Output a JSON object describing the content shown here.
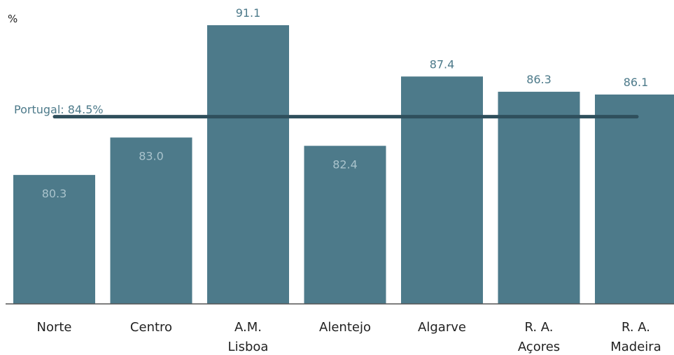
{
  "chart_data": {
    "type": "bar",
    "ylabel": "%",
    "categories": [
      [
        "Norte"
      ],
      [
        "Centro"
      ],
      [
        "A.M.",
        "Lisboa"
      ],
      [
        "Alentejo"
      ],
      [
        "Algarve"
      ],
      [
        "R. A.",
        "Açores"
      ],
      [
        "R. A.",
        "Madeira"
      ]
    ],
    "values": [
      80.3,
      83.0,
      91.1,
      82.4,
      87.4,
      86.3,
      86.1
    ],
    "value_labels": [
      "80.3",
      "83.0",
      "91.1",
      "82.4",
      "87.4",
      "86.3",
      "86.1"
    ],
    "reference_line": {
      "label": "Portugal: 84.5%",
      "value": 84.5
    },
    "ylim": [
      71,
      91.1
    ],
    "grid": false,
    "colors": {
      "bar": "#4d7a8a",
      "reference_line": "#2f4f5c",
      "label_inside": "#a9c3cc",
      "label_outside": "#4d7a8a",
      "text": "#222222",
      "axis": "#555555"
    }
  }
}
